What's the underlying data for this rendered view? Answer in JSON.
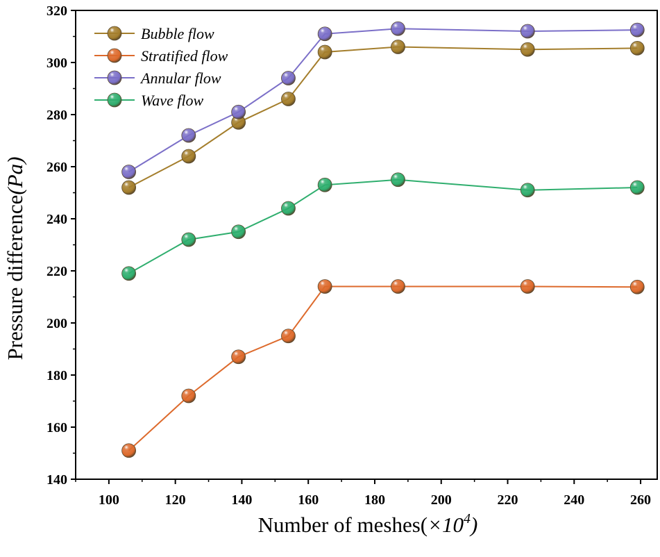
{
  "chart_data": {
    "type": "line",
    "xlabel": "Number of meshes(",
    "xlabel_unit": "×10",
    "xlabel_exp": "4",
    "xlabel_close": ")",
    "ylabel": "Pressure difference",
    "ylabel_unit": "(Pa)",
    "xlim": [
      90,
      265
    ],
    "ylim": [
      140,
      320
    ],
    "xticks": [
      100,
      120,
      140,
      160,
      180,
      200,
      220,
      240,
      260
    ],
    "yticks": [
      140,
      160,
      180,
      200,
      220,
      240,
      260,
      280,
      300,
      320
    ],
    "x": [
      106,
      124,
      139,
      154,
      165,
      187,
      226,
      259
    ],
    "series": [
      {
        "name": "Bubble flow",
        "color": "#a47e2c",
        "values": [
          252,
          264,
          277,
          286,
          304,
          306,
          305,
          305.5
        ]
      },
      {
        "name": "Stratified flow",
        "color": "#dd6a2c",
        "values": [
          151,
          172,
          187,
          195,
          214,
          214,
          214,
          213.8
        ]
      },
      {
        "name": "Annular flow",
        "color": "#7b6fc8",
        "values": [
          258,
          272,
          281,
          294,
          311,
          313,
          312,
          312.5
        ]
      },
      {
        "name": "Wave flow",
        "color": "#2fae6e",
        "values": [
          219,
          232,
          235,
          244,
          253,
          255,
          251,
          252
        ]
      }
    ],
    "legend": "top-left",
    "grid": false
  }
}
